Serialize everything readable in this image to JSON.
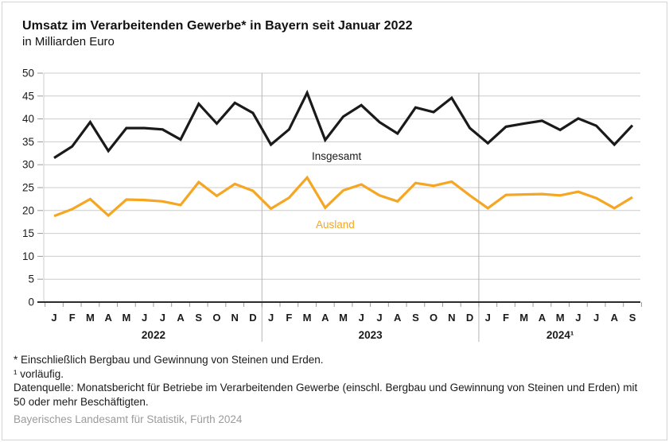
{
  "header": {
    "title": "Umsatz im Verarbeitenden Gewerbe* in Bayern seit Januar 2022",
    "subtitle": "in Milliarden Euro"
  },
  "footnotes": {
    "line1": "* Einschließlich Bergbau und Gewinnung von Steinen und Erden.",
    "line2": "¹ vorläufig.",
    "line3": "Datenquelle: Monatsbericht für Betriebe im Verarbeitenden Gewerbe (einschl. Bergbau und Gewinnung von Steinen und Erden) mit 50 oder mehr Beschäftigten.",
    "source": "Bayerisches Landesamt für Statistik, Fürth 2024"
  },
  "chart_data": {
    "type": "line",
    "title": "Umsatz im Verarbeitenden Gewerbe* in Bayern seit Januar 2022",
    "subtitle": "in Milliarden Euro",
    "ylabel": "Milliarden Euro",
    "ylim": [
      0,
      50
    ],
    "ytick_step": 5,
    "grid": true,
    "month_labels": [
      "J",
      "F",
      "M",
      "A",
      "M",
      "J",
      "J",
      "A",
      "S",
      "O",
      "N",
      "D",
      "J",
      "F",
      "M",
      "A",
      "M",
      "J",
      "J",
      "A",
      "S",
      "O",
      "N",
      "D",
      "J",
      "F",
      "M",
      "A",
      "M",
      "J",
      "J",
      "A",
      "S"
    ],
    "year_groups": [
      {
        "label": "2022",
        "months": 12
      },
      {
        "label": "2023",
        "months": 12
      },
      {
        "label": "2024¹",
        "months": 9
      }
    ],
    "series": [
      {
        "name": "Insgesamt",
        "color": "#1a1a1a",
        "values": [
          31.5,
          34.0,
          39.3,
          33.0,
          38.0,
          38.0,
          37.7,
          35.5,
          43.3,
          39.0,
          43.5,
          41.3,
          34.4,
          37.7,
          45.7,
          35.4,
          40.5,
          43.0,
          39.3,
          36.8,
          42.5,
          41.5,
          44.6,
          38.0,
          34.7,
          38.3,
          39.0,
          39.6,
          37.6,
          40.1,
          38.5,
          34.4,
          38.6
        ]
      },
      {
        "name": "Ausland",
        "color": "#F5A623",
        "values": [
          18.8,
          20.3,
          22.5,
          18.9,
          22.4,
          22.3,
          22.0,
          21.2,
          26.2,
          23.2,
          25.8,
          24.3,
          20.4,
          22.8,
          27.2,
          20.6,
          24.4,
          25.7,
          23.3,
          22.0,
          26.0,
          25.4,
          26.3,
          23.3,
          20.5,
          23.4,
          23.5,
          23.6,
          23.3,
          24.1,
          22.7,
          20.5,
          22.9
        ]
      }
    ],
    "colors": {
      "grid": "#cccccc",
      "axis": "#2b2b2b",
      "tick": "#999999",
      "year_separator": "#b5b5b5",
      "label_text": "#1a1a1a"
    },
    "legend_position": "inline-labels"
  }
}
